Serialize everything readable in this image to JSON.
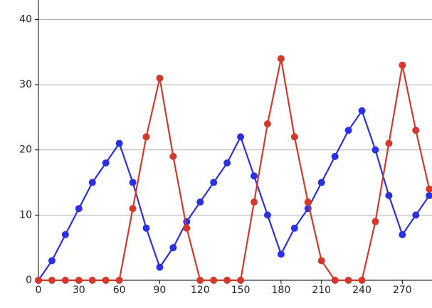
{
  "chart_data": {
    "type": "line",
    "x": [
      0,
      10,
      20,
      30,
      40,
      50,
      60,
      70,
      80,
      90,
      100,
      110,
      120,
      130,
      140,
      150,
      160,
      170,
      180,
      190,
      200,
      210,
      220,
      230,
      240,
      250,
      260,
      270,
      280,
      290
    ],
    "series": [
      {
        "color": "#2b30e0",
        "values": [
          0,
          3,
          7,
          11,
          15,
          18,
          21,
          15,
          8,
          2,
          5,
          9,
          12,
          15,
          18,
          22,
          16,
          10,
          4,
          8,
          11,
          15,
          19,
          23,
          26,
          20,
          13,
          7,
          10,
          13
        ]
      },
      {
        "color": "#d2392b",
        "values": [
          0,
          0,
          0,
          0,
          0,
          0,
          0,
          11,
          22,
          31,
          19,
          8,
          0,
          0,
          0,
          0,
          12,
          24,
          34,
          22,
          12,
          3,
          0,
          0,
          0,
          9,
          21,
          33,
          23,
          14
        ]
      }
    ],
    "xlim": [
      0,
      292
    ],
    "ylim": [
      0,
      43
    ],
    "xticks": [
      0,
      30,
      60,
      90,
      120,
      150,
      180,
      210,
      240,
      270
    ],
    "yticks": [
      0,
      10,
      20,
      30,
      40
    ],
    "grid": true
  }
}
